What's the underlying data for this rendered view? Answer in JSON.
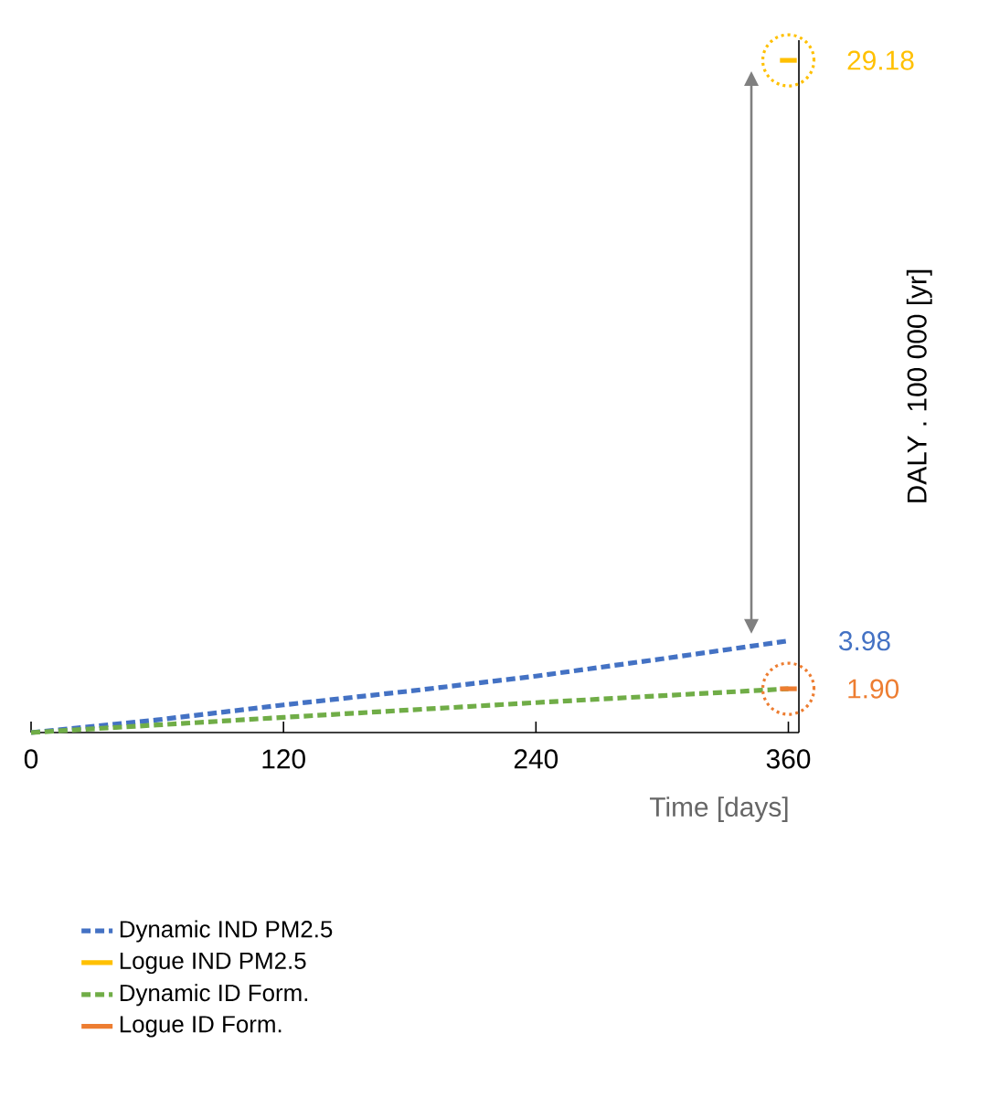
{
  "chart_data": {
    "type": "line",
    "xlabel": "Time [days]",
    "ylabel": "DALY . 100 000 [yr]",
    "xlim": [
      0,
      365
    ],
    "xticks": [
      0,
      120,
      240,
      360
    ],
    "tick_labels": "x",
    "legend": "bottom",
    "grid": false,
    "series": [
      {
        "name": "Dynamic IND PM2.5",
        "color": "#4472c4",
        "line_style": "dashed",
        "x": [
          0,
          60,
          120,
          180,
          240,
          300,
          360
        ],
        "values": [
          0,
          0.55,
          1.2,
          1.8,
          2.45,
          3.2,
          3.98
        ],
        "value_labels": [
          null,
          null,
          null,
          null,
          null,
          null,
          "3.98"
        ]
      },
      {
        "name": "Logue IND PM2.5",
        "color": "#ffc000",
        "line_style": "solid",
        "x": [
          356,
          364
        ],
        "values": [
          29.18,
          29.18
        ],
        "value_labels": [
          null,
          "29.18"
        ]
      },
      {
        "name": "Dynamic ID Form.",
        "color": "#70ad47",
        "line_style": "dashed",
        "x": [
          0,
          60,
          120,
          180,
          240,
          300,
          360
        ],
        "values": [
          0,
          0.33,
          0.66,
          0.98,
          1.3,
          1.6,
          1.9
        ],
        "value_labels": [
          null,
          null,
          null,
          null,
          null,
          null,
          null
        ]
      },
      {
        "name": "Logue ID Form.",
        "color": "#ed7d31",
        "line_style": "solid",
        "x": [
          356,
          364
        ],
        "values": [
          1.9,
          1.9
        ],
        "value_labels": [
          null,
          "1.90"
        ]
      }
    ]
  }
}
